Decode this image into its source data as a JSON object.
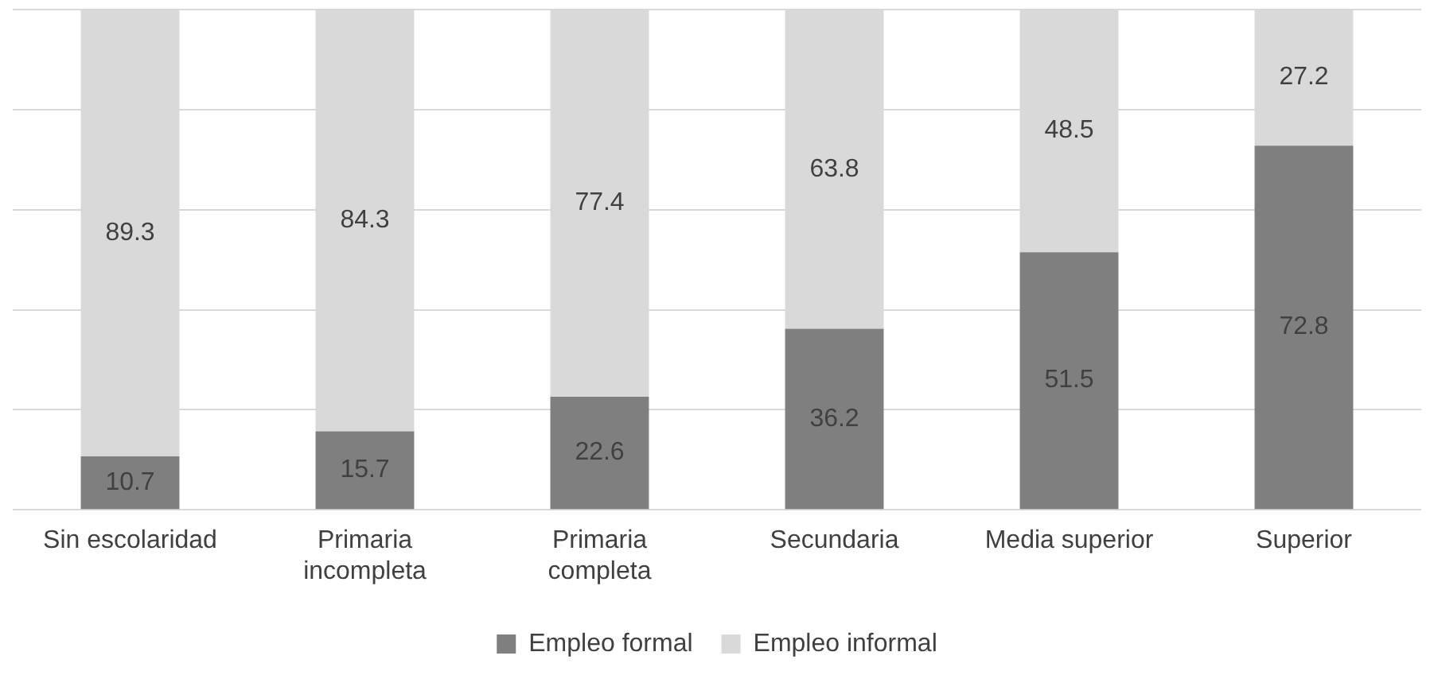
{
  "chart_data": {
    "type": "bar",
    "stacked": true,
    "categories": [
      "Sin escolaridad",
      "Primaria incompleta",
      "Primaria completa",
      "Secundaria",
      "Media superior",
      "Superior"
    ],
    "series": [
      {
        "name": "Empleo formal",
        "color": "#7f7f7f",
        "values": [
          10.7,
          15.7,
          22.6,
          36.2,
          51.5,
          72.8
        ]
      },
      {
        "name": "Empleo informal",
        "color": "#d9d9d9",
        "values": [
          89.3,
          84.3,
          77.4,
          63.8,
          48.5,
          27.2
        ]
      }
    ],
    "ylim": [
      0,
      100
    ],
    "yticks": [
      {
        "value": 0,
        "label": null
      },
      {
        "value": 20,
        "label": null
      },
      {
        "value": 40,
        "label": null
      },
      {
        "value": 60,
        "label": null
      },
      {
        "value": 80,
        "label": null
      },
      {
        "value": 100,
        "label": null
      }
    ],
    "grid": "y",
    "tick_labels": "x",
    "legend": "bottom",
    "data_labels": true
  }
}
